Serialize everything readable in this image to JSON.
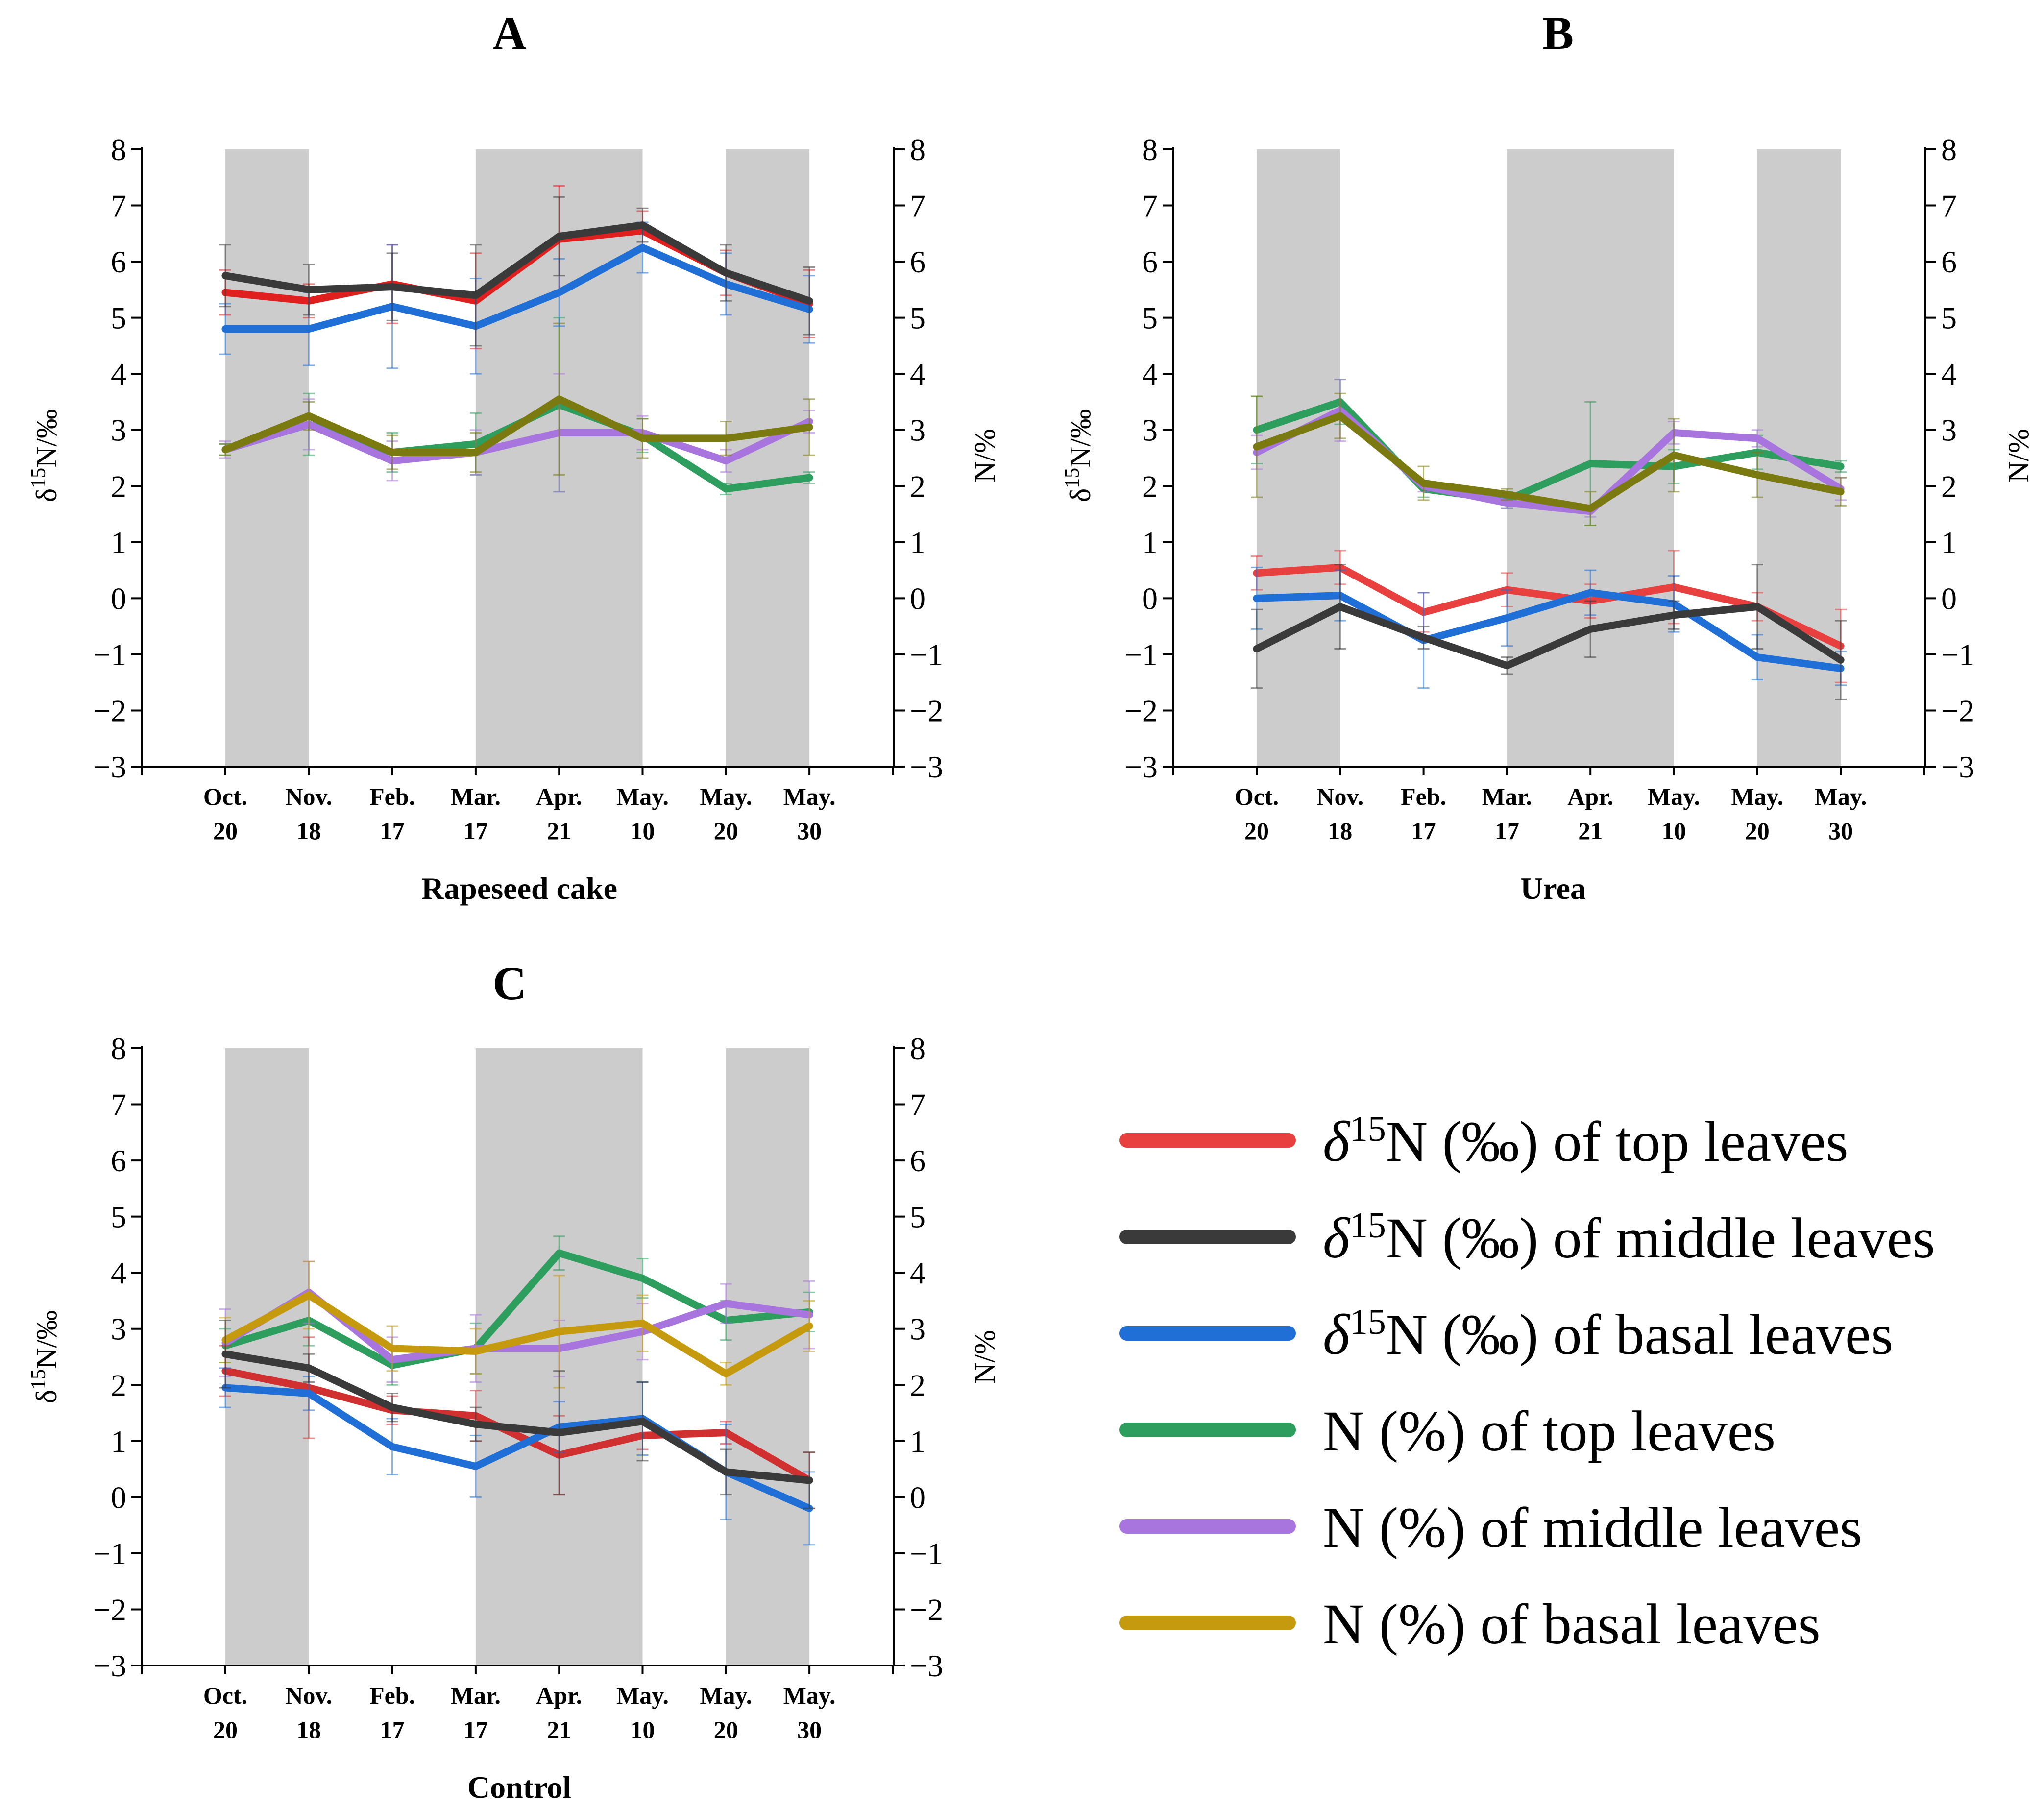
{
  "figure": {
    "panels_letters": [
      "A",
      "B",
      "C"
    ]
  },
  "legend": {
    "entries": [
      {
        "prefix": "δ",
        "sup": "15",
        "text": "N (‰) of top leaves",
        "color": "#e8403f"
      },
      {
        "prefix": "δ",
        "sup": "15",
        "text": "N (‰) of middle leaves",
        "color": "#3a3a3a"
      },
      {
        "prefix": "δ",
        "sup": "15",
        "text": "N (‰) of basal leaves",
        "color": "#1f6fd6"
      },
      {
        "prefix": "",
        "sup": "",
        "text": "N (%) of top leaves",
        "color": "#2e9e5e"
      },
      {
        "prefix": "",
        "sup": "",
        "text": "N (%) of middle leaves",
        "color": "#a775dd"
      },
      {
        "prefix": "",
        "sup": "",
        "text": "N (%) of basal leaves",
        "color": "#c69a0e"
      }
    ]
  },
  "chart_data": [
    {
      "type": "line",
      "title": "A",
      "xlabel": "Rapeseed cake",
      "ylabel_left": "δ15N/‰",
      "ylabel_right": "N/%",
      "categories": [
        [
          "Oct.",
          "20"
        ],
        [
          "Nov.",
          "18"
        ],
        [
          "Feb.",
          "17"
        ],
        [
          "Mar.",
          "17"
        ],
        [
          "Apr.",
          "21"
        ],
        [
          "May.",
          "10"
        ],
        [
          "May.",
          "20"
        ],
        [
          "May.",
          "30"
        ]
      ],
      "ylim": [
        -3,
        8
      ],
      "yticks": [
        "−3",
        "−2",
        "−1",
        "0",
        "1",
        "2",
        "3",
        "4",
        "5",
        "6",
        "7",
        "8"
      ],
      "shaded_category_ranges": [
        [
          0,
          1
        ],
        [
          3,
          5
        ],
        [
          6,
          7
        ]
      ],
      "series": [
        {
          "name": "N (%) of top leaves",
          "color": "#2e9e5e",
          "values": [
            2.65,
            3.1,
            2.6,
            2.75,
            3.45,
            2.9,
            1.95,
            2.15
          ],
          "errors": [
            0.1,
            0.55,
            0.35,
            0.55,
            1.55,
            0.3,
            0.1,
            0.1
          ]
        },
        {
          "name": "N (%) of middle leaves",
          "color": "#a775dd",
          "values": [
            2.65,
            3.1,
            2.45,
            2.6,
            2.95,
            2.95,
            2.45,
            3.15
          ],
          "errors": [
            0.15,
            0.45,
            0.35,
            0.4,
            1.05,
            0.3,
            0.2,
            0.2
          ]
        },
        {
          "name": "N (%) of basal leaves",
          "color": "#7a7a10",
          "values": [
            2.65,
            3.25,
            2.6,
            2.6,
            3.55,
            2.85,
            2.85,
            3.05
          ],
          "errors": [
            0.1,
            0.25,
            0.3,
            0.35,
            1.35,
            0.35,
            0.3,
            0.5
          ]
        },
        {
          "name": "δ15N (‰) of top leaves",
          "color": "#e01f1f",
          "values": [
            5.45,
            5.3,
            5.6,
            5.3,
            6.4,
            6.55,
            5.8,
            5.25
          ],
          "errors": [
            0.4,
            0.3,
            0.7,
            0.85,
            0.95,
            0.35,
            0.4,
            0.6
          ]
        },
        {
          "name": "δ15N (‰) of basal leaves",
          "color": "#1f6fd6",
          "values": [
            4.8,
            4.8,
            5.2,
            4.85,
            5.45,
            6.25,
            5.6,
            5.15
          ],
          "errors": [
            0.45,
            0.65,
            1.1,
            0.85,
            0.6,
            0.45,
            0.55,
            0.6
          ]
        },
        {
          "name": "δ15N (‰) of middle leaves",
          "color": "#3a3a3a",
          "values": [
            5.75,
            5.5,
            5.55,
            5.4,
            6.45,
            6.65,
            5.8,
            5.3
          ],
          "errors": [
            0.55,
            0.45,
            0.6,
            0.9,
            0.7,
            0.3,
            0.5,
            0.6
          ]
        }
      ]
    },
    {
      "type": "line",
      "title": "B",
      "xlabel": "Urea",
      "ylabel_left": "δ15N/‰",
      "ylabel_right": "N/%",
      "categories": [
        [
          "Oct.",
          "20"
        ],
        [
          "Nov.",
          "18"
        ],
        [
          "Feb.",
          "17"
        ],
        [
          "Mar.",
          "17"
        ],
        [
          "Apr.",
          "21"
        ],
        [
          "May.",
          "10"
        ],
        [
          "May.",
          "20"
        ],
        [
          "May.",
          "30"
        ]
      ],
      "ylim": [
        -3,
        8
      ],
      "yticks": [
        "−3",
        "−2",
        "−1",
        "0",
        "1",
        "2",
        "3",
        "4",
        "5",
        "6",
        "7",
        "8"
      ],
      "shaded_category_ranges": [
        [
          0,
          1
        ],
        [
          3,
          5
        ],
        [
          6,
          7
        ]
      ],
      "series": [
        {
          "name": "N (%) of top leaves",
          "color": "#2e9e5e",
          "values": [
            3.0,
            3.5,
            1.95,
            1.75,
            2.4,
            2.35,
            2.6,
            2.35
          ],
          "errors": [
            0.6,
            0.4,
            0.15,
            0.15,
            1.1,
            0.3,
            0.3,
            0.1
          ]
        },
        {
          "name": "N (%) of middle leaves",
          "color": "#a775dd",
          "values": [
            2.6,
            3.35,
            2.0,
            1.7,
            1.55,
            2.95,
            2.85,
            1.95
          ],
          "errors": [
            0.3,
            0.55,
            0.1,
            0.1,
            0.1,
            0.2,
            0.15,
            0.2
          ]
        },
        {
          "name": "N (%) of basal leaves",
          "color": "#7a7a10",
          "values": [
            2.7,
            3.25,
            2.05,
            1.85,
            1.6,
            2.55,
            2.2,
            1.9
          ],
          "errors": [
            0.9,
            0.4,
            0.3,
            0.1,
            0.3,
            0.65,
            0.4,
            0.25
          ]
        },
        {
          "name": "δ15N (‰) of top leaves",
          "color": "#e8403f",
          "values": [
            0.45,
            0.55,
            -0.25,
            0.15,
            -0.05,
            0.2,
            -0.15,
            -0.85
          ],
          "errors": [
            0.3,
            0.3,
            0.35,
            0.3,
            0.3,
            0.65,
            0.25,
            0.65
          ]
        },
        {
          "name": "δ15N (‰) of basal leaves",
          "color": "#1f6fd6",
          "values": [
            0.0,
            0.05,
            -0.75,
            -0.35,
            0.1,
            -0.1,
            -1.05,
            -1.25
          ],
          "errors": [
            0.55,
            0.45,
            0.85,
            0.5,
            0.4,
            0.5,
            0.4,
            0.3
          ]
        },
        {
          "name": "δ15N (‰) of middle leaves",
          "color": "#3a3a3a",
          "values": [
            -0.9,
            -0.15,
            -0.7,
            -1.2,
            -0.55,
            -0.3,
            -0.15,
            -1.1
          ],
          "errors": [
            0.7,
            0.75,
            0.2,
            0.15,
            0.5,
            0.25,
            0.75,
            0.7
          ]
        }
      ]
    },
    {
      "type": "line",
      "title": "C",
      "xlabel": "Control",
      "ylabel_left": "δ15N/‰",
      "ylabel_right": "N/%",
      "categories": [
        [
          "Oct.",
          "20"
        ],
        [
          "Nov.",
          "18"
        ],
        [
          "Feb.",
          "17"
        ],
        [
          "Mar.",
          "17"
        ],
        [
          "Apr.",
          "21"
        ],
        [
          "May.",
          "10"
        ],
        [
          "May.",
          "20"
        ],
        [
          "May.",
          "30"
        ]
      ],
      "ylim": [
        -3,
        8
      ],
      "yticks": [
        "−3",
        "−2",
        "−1",
        "0",
        "1",
        "2",
        "3",
        "4",
        "5",
        "6",
        "7",
        "8"
      ],
      "shaded_category_ranges": [
        [
          0,
          1
        ],
        [
          3,
          5
        ],
        [
          6,
          7
        ]
      ],
      "series": [
        {
          "name": "N (%) of top leaves",
          "color": "#2e9e5e",
          "values": [
            2.7,
            3.15,
            2.35,
            2.65,
            4.35,
            3.9,
            3.15,
            3.3
          ],
          "errors": [
            0.3,
            0.45,
            0.35,
            0.45,
            0.3,
            0.35,
            0.35,
            0.35
          ]
        },
        {
          "name": "N (%) of middle leaves",
          "color": "#a775dd",
          "values": [
            2.75,
            3.65,
            2.45,
            2.65,
            2.65,
            2.95,
            3.45,
            3.25
          ],
          "errors": [
            0.6,
            0.55,
            0.4,
            0.6,
            0.5,
            0.5,
            0.35,
            0.6
          ]
        },
        {
          "name": "N (%) of basal leaves",
          "color": "#c69a0e",
          "values": [
            2.8,
            3.6,
            2.65,
            2.6,
            2.95,
            3.1,
            2.2,
            3.05
          ],
          "errors": [
            0.4,
            0.6,
            0.4,
            0.4,
            1.0,
            0.5,
            0.2,
            0.45
          ]
        },
        {
          "name": "δ15N (‰) of top leaves",
          "color": "#d03030",
          "values": [
            2.25,
            1.95,
            1.55,
            1.45,
            0.75,
            1.1,
            1.15,
            0.3
          ],
          "errors": [
            0.45,
            0.9,
            0.25,
            0.45,
            0.7,
            0.25,
            0.2,
            0.5
          ]
        },
        {
          "name": "δ15N (‰) of basal leaves",
          "color": "#1f6fd6",
          "values": [
            1.95,
            1.85,
            0.9,
            0.55,
            1.25,
            1.4,
            0.45,
            -0.2
          ],
          "errors": [
            0.35,
            0.3,
            0.5,
            0.55,
            0.45,
            0.65,
            0.85,
            0.65
          ]
        },
        {
          "name": "δ15N (‰) of middle leaves",
          "color": "#3a3a3a",
          "values": [
            2.55,
            2.3,
            1.6,
            1.3,
            1.15,
            1.35,
            0.45,
            0.3
          ],
          "errors": [
            0.6,
            0.25,
            0.25,
            0.3,
            1.1,
            0.7,
            0.4,
            0.5
          ]
        }
      ]
    }
  ]
}
